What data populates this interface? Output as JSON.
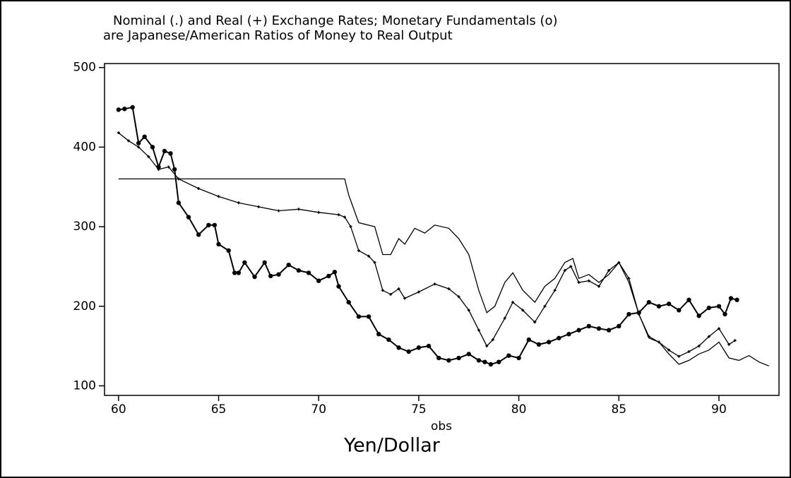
{
  "chart_data": {
    "type": "line",
    "title": "Nominal (.) and Real (+) Exchange Rates; Monetary Fundamentals (o)",
    "subtitle": "are Japanese/American Ratios of Money to Real Output",
    "x_label": "obs",
    "caption": "Yen/Dollar",
    "xlim": [
      59.3,
      93
    ],
    "ylim": [
      88,
      505
    ],
    "xticks": [
      60,
      65,
      70,
      75,
      80,
      85,
      90
    ],
    "yticks": [
      100,
      200,
      300,
      400,
      500
    ],
    "color": "#000000",
    "series": [
      {
        "name": "Nominal",
        "marker": "none",
        "x": [
          60,
          71.3,
          71.5,
          72,
          72.8,
          73.2,
          73.6,
          74,
          74.3,
          74.8,
          75.3,
          75.8,
          76.5,
          77,
          77.5,
          78,
          78.4,
          78.8,
          79.3,
          79.7,
          80.2,
          80.8,
          81.3,
          81.8,
          82.3,
          82.7,
          83,
          83.5,
          84,
          84.5,
          85,
          85.5,
          86,
          86.5,
          87,
          87.5,
          88,
          88.5,
          89,
          89.5,
          90,
          90.5,
          91,
          91.5,
          92,
          92.5
        ],
        "values": [
          360,
          360,
          340,
          305,
          300,
          265,
          265,
          285,
          278,
          298,
          292,
          302,
          298,
          285,
          265,
          220,
          192,
          200,
          230,
          242,
          220,
          205,
          225,
          235,
          255,
          260,
          235,
          240,
          230,
          240,
          255,
          230,
          190,
          160,
          155,
          140,
          127,
          132,
          140,
          145,
          155,
          135,
          132,
          138,
          130,
          125
        ]
      },
      {
        "name": "Real",
        "marker": "plus",
        "x": [
          60,
          60.5,
          61,
          61.5,
          62,
          62.5,
          63,
          64,
          65,
          66,
          67,
          68,
          69,
          70,
          71,
          71.3,
          71.6,
          72,
          72.5,
          72.8,
          73.2,
          73.6,
          74,
          74.3,
          75,
          75.8,
          76.5,
          77,
          77.5,
          78,
          78.4,
          78.7,
          79.3,
          79.7,
          80.2,
          80.8,
          81.3,
          81.8,
          82.3,
          82.6,
          83,
          83.5,
          84,
          84.5,
          85,
          85.5,
          86,
          86.5,
          87,
          87.5,
          88,
          88.5,
          89,
          89.5,
          90,
          90.5,
          90.8
        ],
        "values": [
          418,
          408,
          400,
          388,
          372,
          375,
          360,
          348,
          338,
          330,
          325,
          320,
          322,
          318,
          315,
          312,
          300,
          270,
          263,
          255,
          220,
          215,
          222,
          210,
          218,
          228,
          222,
          212,
          195,
          170,
          150,
          158,
          185,
          205,
          195,
          180,
          200,
          220,
          245,
          250,
          230,
          232,
          225,
          245,
          255,
          235,
          190,
          162,
          155,
          145,
          137,
          143,
          150,
          162,
          172,
          152,
          157
        ]
      },
      {
        "name": "Monetary Fundamentals",
        "marker": "circle",
        "x": [
          60,
          60.3,
          60.7,
          61,
          61.3,
          61.7,
          62,
          62.3,
          62.6,
          62.8,
          63,
          63.5,
          64,
          64.5,
          64.8,
          65,
          65.5,
          65.8,
          66,
          66.3,
          66.8,
          67.3,
          67.6,
          68,
          68.5,
          69,
          69.5,
          70,
          70.5,
          70.8,
          71,
          71.5,
          72,
          72.5,
          73,
          73.5,
          74,
          74.5,
          75,
          75.5,
          76,
          76.5,
          77,
          77.5,
          78,
          78.3,
          78.6,
          79,
          79.5,
          80,
          80.5,
          81,
          81.5,
          82,
          82.5,
          83,
          83.5,
          84,
          84.5,
          85,
          85.5,
          86,
          86.5,
          87,
          87.5,
          88,
          88.5,
          89,
          89.5,
          90,
          90.3,
          90.6,
          90.9
        ],
        "values": [
          447,
          448,
          450,
          405,
          413,
          400,
          375,
          395,
          392,
          372,
          330,
          312,
          290,
          302,
          302,
          278,
          270,
          242,
          242,
          255,
          237,
          255,
          238,
          240,
          252,
          245,
          242,
          232,
          238,
          243,
          225,
          205,
          187,
          187,
          165,
          158,
          148,
          143,
          148,
          150,
          135,
          132,
          135,
          140,
          132,
          130,
          127,
          130,
          138,
          135,
          158,
          152,
          155,
          160,
          165,
          170,
          175,
          172,
          170,
          175,
          190,
          192,
          205,
          200,
          203,
          195,
          208,
          188,
          198,
          200,
          190,
          210,
          208
        ]
      }
    ]
  }
}
